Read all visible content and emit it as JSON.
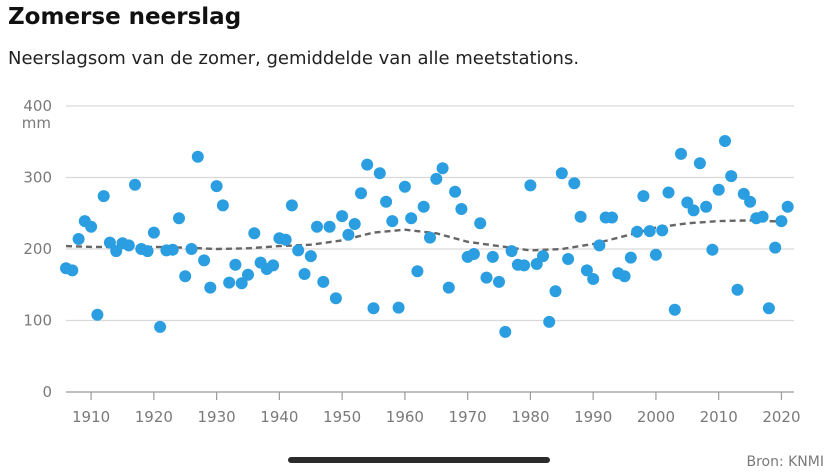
{
  "header": {
    "title": "Zomerse neerslag",
    "subtitle": "Neerslagsom van de zomer, gemiddelde van alle meetstations."
  },
  "footer": {
    "source": "Bron: KNMI"
  },
  "colors": {
    "points": "#2a9ee0",
    "trend": "#666666"
  },
  "chart_data": {
    "type": "scatter",
    "title": "Zomerse neerslag",
    "subtitle": "Neerslagsom van de zomer, gemiddelde van alle meetstations.",
    "ylabel": "mm",
    "xlim": [
      1906,
      2022
    ],
    "ylim": [
      0,
      400
    ],
    "xticks": [
      1910,
      1920,
      1930,
      1940,
      1950,
      1960,
      1970,
      1980,
      1990,
      2000,
      2010,
      2020
    ],
    "yticks": [
      0,
      100,
      200,
      300,
      400
    ],
    "grid": "horizontal",
    "series": [
      {
        "kind": "points",
        "points": [
          [
            1906,
            173
          ],
          [
            1907,
            170
          ],
          [
            1908,
            214
          ],
          [
            1909,
            239
          ],
          [
            1910,
            231
          ],
          [
            1911,
            108
          ],
          [
            1912,
            274
          ],
          [
            1913,
            209
          ],
          [
            1914,
            197
          ],
          [
            1915,
            208
          ],
          [
            1916,
            205
          ],
          [
            1917,
            290
          ],
          [
            1918,
            200
          ],
          [
            1919,
            197
          ],
          [
            1920,
            223
          ],
          [
            1921,
            91
          ],
          [
            1922,
            198
          ],
          [
            1923,
            199
          ],
          [
            1924,
            243
          ],
          [
            1925,
            162
          ],
          [
            1926,
            200
          ],
          [
            1927,
            329
          ],
          [
            1928,
            184
          ],
          [
            1929,
            146
          ],
          [
            1930,
            288
          ],
          [
            1931,
            261
          ],
          [
            1932,
            153
          ],
          [
            1933,
            178
          ],
          [
            1934,
            152
          ],
          [
            1935,
            164
          ],
          [
            1936,
            222
          ],
          [
            1937,
            181
          ],
          [
            1938,
            172
          ],
          [
            1939,
            177
          ],
          [
            1940,
            215
          ],
          [
            1941,
            213
          ],
          [
            1942,
            261
          ],
          [
            1943,
            198
          ],
          [
            1944,
            165
          ],
          [
            1945,
            190
          ],
          [
            1946,
            231
          ],
          [
            1947,
            154
          ],
          [
            1948,
            231
          ],
          [
            1949,
            131
          ],
          [
            1950,
            246
          ],
          [
            1951,
            220
          ],
          [
            1952,
            235
          ],
          [
            1953,
            278
          ],
          [
            1954,
            318
          ],
          [
            1955,
            117
          ],
          [
            1956,
            306
          ],
          [
            1957,
            266
          ],
          [
            1958,
            239
          ],
          [
            1959,
            118
          ],
          [
            1960,
            287
          ],
          [
            1961,
            243
          ],
          [
            1962,
            169
          ],
          [
            1963,
            259
          ],
          [
            1964,
            216
          ],
          [
            1965,
            298
          ],
          [
            1966,
            313
          ],
          [
            1967,
            146
          ],
          [
            1968,
            280
          ],
          [
            1969,
            256
          ],
          [
            1970,
            189
          ],
          [
            1971,
            193
          ],
          [
            1972,
            236
          ],
          [
            1973,
            160
          ],
          [
            1974,
            189
          ],
          [
            1975,
            154
          ],
          [
            1976,
            84
          ],
          [
            1977,
            197
          ],
          [
            1978,
            178
          ],
          [
            1979,
            177
          ],
          [
            1980,
            289
          ],
          [
            1981,
            179
          ],
          [
            1982,
            190
          ],
          [
            1983,
            98
          ],
          [
            1984,
            141
          ],
          [
            1985,
            306
          ],
          [
            1986,
            186
          ],
          [
            1987,
            292
          ],
          [
            1988,
            245
          ],
          [
            1989,
            170
          ],
          [
            1990,
            158
          ],
          [
            1991,
            205
          ],
          [
            1992,
            244
          ],
          [
            1993,
            244
          ],
          [
            1994,
            166
          ],
          [
            1995,
            162
          ],
          [
            1996,
            188
          ],
          [
            1997,
            224
          ],
          [
            1998,
            274
          ],
          [
            1999,
            225
          ],
          [
            2000,
            192
          ],
          [
            2001,
            226
          ],
          [
            2002,
            279
          ],
          [
            2003,
            115
          ],
          [
            2004,
            333
          ],
          [
            2005,
            265
          ],
          [
            2006,
            254
          ],
          [
            2007,
            320
          ],
          [
            2008,
            259
          ],
          [
            2009,
            199
          ],
          [
            2010,
            283
          ],
          [
            2011,
            351
          ],
          [
            2012,
            302
          ],
          [
            2013,
            143
          ],
          [
            2014,
            277
          ],
          [
            2015,
            266
          ],
          [
            2016,
            243
          ],
          [
            2017,
            245
          ],
          [
            2018,
            117
          ],
          [
            2019,
            202
          ],
          [
            2020,
            239
          ],
          [
            2021,
            259
          ]
        ]
      },
      {
        "kind": "trend",
        "style": "dashed",
        "points": [
          [
            1906,
            204
          ],
          [
            1910,
            203
          ],
          [
            1920,
            203
          ],
          [
            1925,
            202
          ],
          [
            1930,
            200
          ],
          [
            1935,
            201
          ],
          [
            1940,
            204
          ],
          [
            1945,
            206
          ],
          [
            1950,
            212
          ],
          [
            1955,
            223
          ],
          [
            1960,
            227
          ],
          [
            1965,
            222
          ],
          [
            1970,
            210
          ],
          [
            1975,
            204
          ],
          [
            1980,
            198
          ],
          [
            1985,
            200
          ],
          [
            1990,
            207
          ],
          [
            1995,
            218
          ],
          [
            2000,
            230
          ],
          [
            2005,
            236
          ],
          [
            2010,
            239
          ],
          [
            2015,
            240
          ],
          [
            2021,
            238
          ]
        ]
      }
    ]
  }
}
